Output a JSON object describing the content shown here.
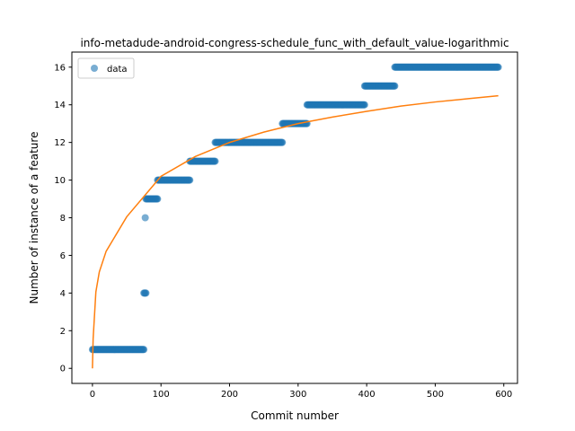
{
  "chart_data": {
    "type": "scatter",
    "title": "info-metadude-android-congress-schedule_func_with_default_value-logarithmic",
    "xlabel": "Commit number",
    "ylabel": "Number of instance of a feature",
    "xlim": [
      -30,
      620
    ],
    "ylim": [
      -0.8,
      16.8
    ],
    "xticks": [
      0,
      100,
      200,
      300,
      400,
      500,
      600
    ],
    "yticks": [
      0,
      2,
      4,
      6,
      8,
      10,
      12,
      14,
      16
    ],
    "grid": false,
    "legend": {
      "position": "upper-left",
      "entries": [
        "data"
      ]
    },
    "series": [
      {
        "name": "data",
        "kind": "scatter",
        "color": "#1f77b4",
        "segments": [
          {
            "y": 1,
            "x_start": 0,
            "x_end": 75
          },
          {
            "y": 4,
            "x_start": 75,
            "x_end": 78
          },
          {
            "y": 8,
            "x_start": 77,
            "x_end": 77
          },
          {
            "y": 9,
            "x_start": 78,
            "x_end": 95
          },
          {
            "y": 10,
            "x_start": 95,
            "x_end": 142
          },
          {
            "y": 11,
            "x_start": 142,
            "x_end": 179
          },
          {
            "y": 12,
            "x_start": 179,
            "x_end": 277
          },
          {
            "y": 13,
            "x_start": 277,
            "x_end": 313
          },
          {
            "y": 14,
            "x_start": 313,
            "x_end": 397
          },
          {
            "y": 15,
            "x_start": 397,
            "x_end": 441
          },
          {
            "y": 16,
            "x_start": 441,
            "x_end": 592
          }
        ]
      },
      {
        "kind": "line",
        "color": "#ff7f0e",
        "model": "logarithmic",
        "curve": [
          {
            "x": 0,
            "y": 0
          },
          {
            "x": 1,
            "y": 1.57
          },
          {
            "x": 5,
            "y": 4.06
          },
          {
            "x": 10,
            "y": 5.12
          },
          {
            "x": 20,
            "y": 6.22
          },
          {
            "x": 50,
            "y": 8.05
          },
          {
            "x": 100,
            "y": 10.2
          },
          {
            "x": 150,
            "y": 11.25
          },
          {
            "x": 200,
            "y": 12.0
          },
          {
            "x": 250,
            "y": 12.55
          },
          {
            "x": 300,
            "y": 13.0
          },
          {
            "x": 350,
            "y": 13.35
          },
          {
            "x": 400,
            "y": 13.65
          },
          {
            "x": 450,
            "y": 13.93
          },
          {
            "x": 500,
            "y": 14.15
          },
          {
            "x": 550,
            "y": 14.33
          },
          {
            "x": 592,
            "y": 14.48
          }
        ]
      }
    ]
  }
}
